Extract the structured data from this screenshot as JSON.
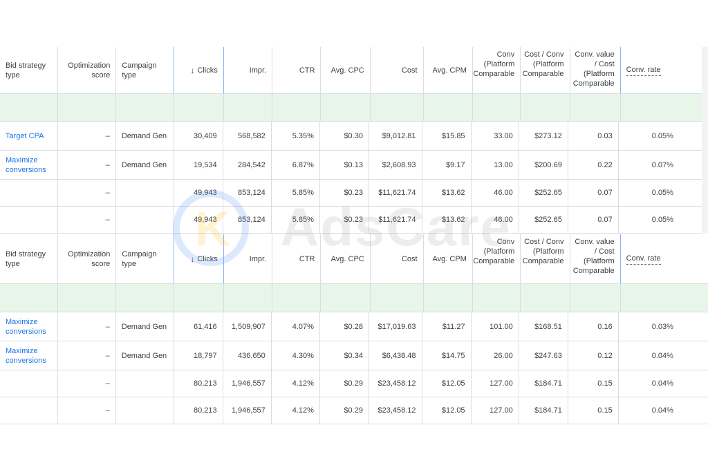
{
  "headers": {
    "bid_strategy": "Bid strategy type",
    "optimization": "Optimization score",
    "campaign_type": "Campaign type",
    "clicks_arrow": "↓",
    "clicks": "Clicks",
    "impr": "Impr.",
    "ctr": "CTR",
    "avg_cpc": "Avg. CPC",
    "cost": "Cost",
    "avg_cpm": "Avg. CPM",
    "conv": "Conv (Platform Comparable",
    "cost_per_conv": "Cost / Conv (Platform Comparable",
    "conv_value_cost": "Conv. value / Cost (Platform Comparable",
    "conv_rate": "Conv. rate"
  },
  "table1": {
    "rows": [
      {
        "bid": "Target CPA",
        "opt": "–",
        "type": "Demand Gen",
        "clicks": "30,409",
        "impr": "568,582",
        "ctr": "5.35%",
        "cpc": "$0.30",
        "cost": "$9,012.81",
        "cpm": "$15.85",
        "conv": "33.00",
        "cost_conv": "$273.12",
        "value_cost": "0.03",
        "rate": "0.05%"
      },
      {
        "bid": "Maximize conversions",
        "opt": "–",
        "type": "Demand Gen",
        "clicks": "19,534",
        "impr": "284,542",
        "ctr": "6.87%",
        "cpc": "$0.13",
        "cost": "$2,608.93",
        "cpm": "$9.17",
        "conv": "13.00",
        "cost_conv": "$200.69",
        "value_cost": "0.22",
        "rate": "0.07%"
      }
    ],
    "totals": [
      {
        "opt": "–",
        "clicks": "49,943",
        "impr": "853,124",
        "ctr": "5.85%",
        "cpc": "$0.23",
        "cost": "$11,621.74",
        "cpm": "$13.62",
        "conv": "46.00",
        "cost_conv": "$252.65",
        "value_cost": "0.07",
        "rate": "0.05%"
      },
      {
        "opt": "–",
        "clicks": "49,943",
        "impr": "853,124",
        "ctr": "5.85%",
        "cpc": "$0.23",
        "cost": "$11,621.74",
        "cpm": "$13.62",
        "conv": "46.00",
        "cost_conv": "$252.65",
        "value_cost": "0.07",
        "rate": "0.05%"
      }
    ]
  },
  "table2": {
    "rows": [
      {
        "bid": "Maximize conversions",
        "opt": "–",
        "type": "Demand Gen",
        "clicks": "61,416",
        "impr": "1,509,907",
        "ctr": "4.07%",
        "cpc": "$0.28",
        "cost": "$17,019.63",
        "cpm": "$11.27",
        "conv": "101.00",
        "cost_conv": "$168.51",
        "value_cost": "0.16",
        "rate": "0.03%"
      },
      {
        "bid": "Maximize conversions",
        "opt": "–",
        "type": "Demand Gen",
        "clicks": "18,797",
        "impr": "436,650",
        "ctr": "4.30%",
        "cpc": "$0.34",
        "cost": "$6,438.48",
        "cpm": "$14.75",
        "conv": "26.00",
        "cost_conv": "$247.63",
        "value_cost": "0.12",
        "rate": "0.04%"
      }
    ],
    "totals": [
      {
        "opt": "–",
        "clicks": "80,213",
        "impr": "1,946,557",
        "ctr": "4.12%",
        "cpc": "$0.29",
        "cost": "$23,458.12",
        "cpm": "$12.05",
        "conv": "127.00",
        "cost_conv": "$184.71",
        "value_cost": "0.15",
        "rate": "0.04%"
      },
      {
        "opt": "–",
        "clicks": "80,213",
        "impr": "1,946,557",
        "ctr": "4.12%",
        "cpc": "$0.29",
        "cost": "$23,458.12",
        "cpm": "$12.05",
        "conv": "127.00",
        "cost_conv": "$184.71",
        "value_cost": "0.15",
        "rate": "0.04%"
      }
    ]
  },
  "watermark": {
    "text": "AdsCare",
    "logo_letter": "K"
  },
  "colors": {
    "link": "#1a73e8",
    "band": "#e8f5e9",
    "border": "#dadce0"
  }
}
